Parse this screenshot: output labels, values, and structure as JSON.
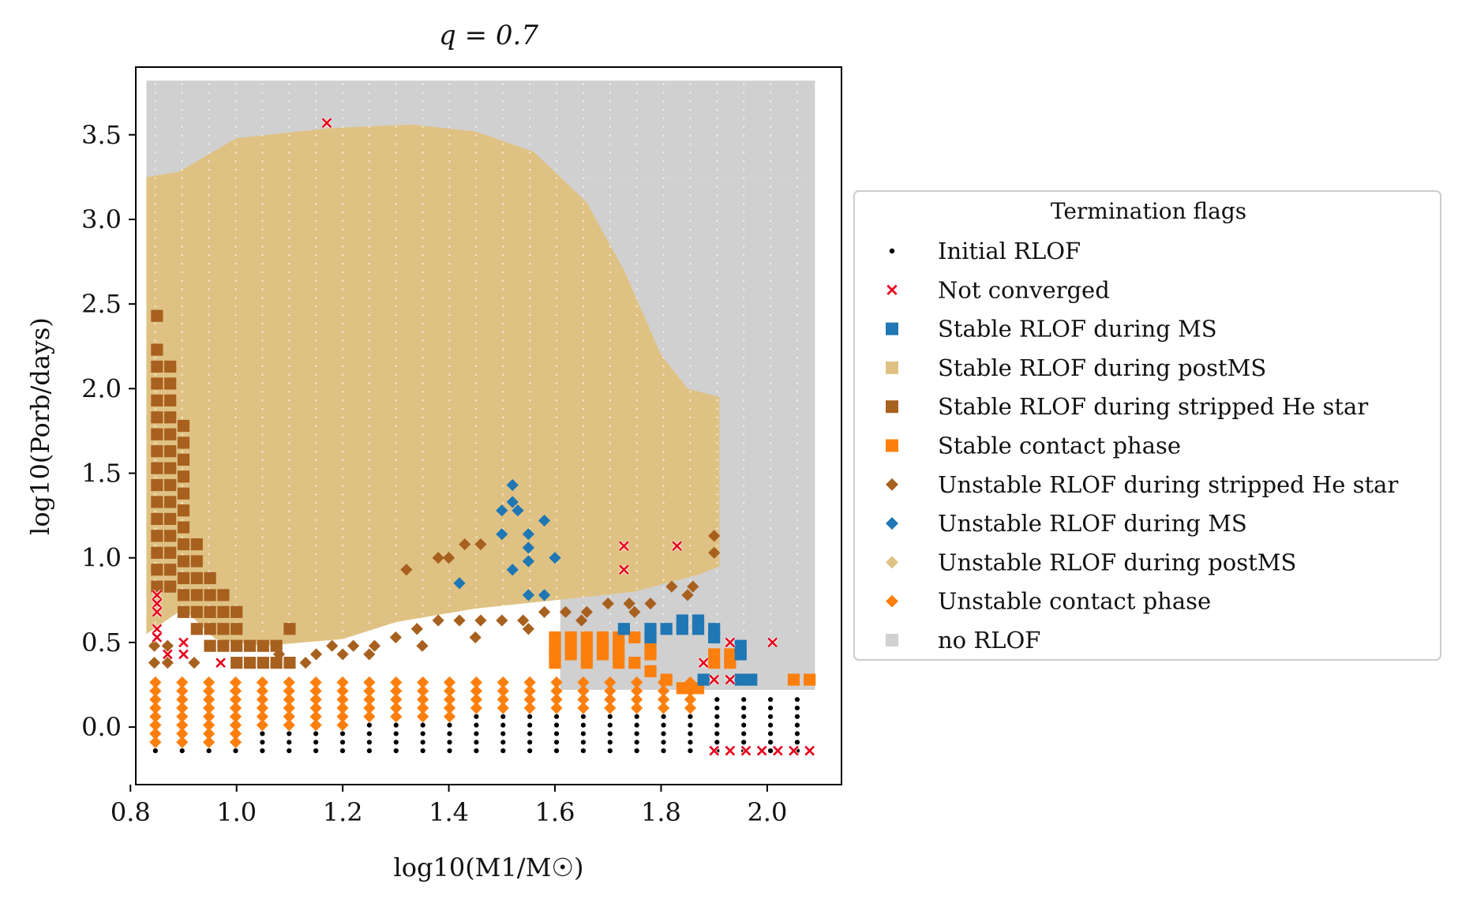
{
  "chart_data": {
    "type": "scatter",
    "title": "q = 0.7",
    "xlabel": "log10(M1/M☉)",
    "ylabel": "log10(Porb/days)",
    "xlim": [
      0.81,
      2.14
    ],
    "ylim": [
      -0.34,
      3.9
    ],
    "xticks": [
      0.8,
      1.0,
      1.2,
      1.4,
      1.6,
      1.8,
      2.0
    ],
    "yticks": [
      0.0,
      0.5,
      1.0,
      1.5,
      2.0,
      2.5,
      3.0,
      3.5
    ],
    "xtick_labels": [
      "0.8",
      "1.0",
      "1.2",
      "1.4",
      "1.6",
      "1.8",
      "2.0"
    ],
    "ytick_labels": [
      "0.0",
      "0.5",
      "1.0",
      "1.5",
      "2.0",
      "2.5",
      "3.0",
      "3.5"
    ],
    "grid": false,
    "legend": {
      "title": "Termination flags",
      "placement": "right, outside axes",
      "entries": [
        {
          "key": "initial_rlof",
          "label": "Initial RLOF",
          "marker": "dot",
          "color": "#000000"
        },
        {
          "key": "not_converged",
          "label": "Not converged",
          "marker": "x",
          "color": "#e8001c"
        },
        {
          "key": "stable_ms",
          "label": "Stable RLOF during MS",
          "marker": "square",
          "color": "#1f77b4"
        },
        {
          "key": "stable_postms",
          "label": "Stable RLOF during postMS",
          "marker": "square",
          "color": "#dfc283"
        },
        {
          "key": "stable_stripped",
          "label": "Stable RLOF during stripped He star",
          "marker": "square",
          "color": "#a8601f"
        },
        {
          "key": "stable_contact",
          "label": "Stable contact phase",
          "marker": "square",
          "color": "#fc7f0e"
        },
        {
          "key": "unstable_stripped",
          "label": "Unstable RLOF during stripped He star",
          "marker": "diamond",
          "color": "#a8601f"
        },
        {
          "key": "unstable_ms",
          "label": "Unstable RLOF during MS",
          "marker": "diamond",
          "color": "#1f77b4"
        },
        {
          "key": "unstable_postms",
          "label": "Unstable RLOF during postMS",
          "marker": "diamond",
          "color": "#dfc283"
        },
        {
          "key": "unstable_contact",
          "label": "Unstable contact phase",
          "marker": "diamond",
          "color": "#fc7f0e"
        },
        {
          "key": "no_rlof",
          "label": "no RLOF",
          "marker": "square",
          "color": "#d0d0d0"
        }
      ]
    },
    "grid_sampling": {
      "x_start": 0.847,
      "x_step": 0.0504,
      "x_count": 25,
      "y_start": -0.14,
      "y_step": 0.0505,
      "y_count": 80
    },
    "series": [
      {
        "key": "no_rlof",
        "rects": [
          [
            0.83,
            3.25,
            2.09,
            3.82
          ],
          [
            1.61,
            0.22,
            2.09,
            3.25
          ]
        ]
      },
      {
        "key": "stable_postms",
        "polygon": [
          [
            0.83,
            0.55
          ],
          [
            0.83,
            3.25
          ],
          [
            0.89,
            3.28
          ],
          [
            1.0,
            3.48
          ],
          [
            1.18,
            3.54
          ],
          [
            1.33,
            3.56
          ],
          [
            1.45,
            3.52
          ],
          [
            1.56,
            3.4
          ],
          [
            1.66,
            3.1
          ],
          [
            1.73,
            2.7
          ],
          [
            1.8,
            2.2
          ],
          [
            1.85,
            2.0
          ],
          [
            1.91,
            1.95
          ],
          [
            1.91,
            0.95
          ],
          [
            1.87,
            0.9
          ],
          [
            1.75,
            0.8
          ],
          [
            1.6,
            0.75
          ],
          [
            1.45,
            0.7
          ],
          [
            1.3,
            0.62
          ],
          [
            1.2,
            0.52
          ],
          [
            1.05,
            0.48
          ],
          [
            0.96,
            0.52
          ],
          [
            0.9,
            0.7
          ]
        ]
      },
      {
        "key": "initial_rlof",
        "region_x": [
          0.847,
          2.09
        ],
        "region_y": [
          -0.14,
          0.2
        ]
      },
      {
        "key": "unstable_contact",
        "region_x": [
          0.847,
          1.9
        ],
        "region_y": [
          -0.09,
          0.29
        ]
      },
      {
        "key": "stable_stripped",
        "points": [
          [
            0.85,
            2.43
          ],
          [
            0.85,
            2.23
          ],
          [
            0.85,
            2.13
          ],
          [
            0.85,
            2.03
          ],
          [
            0.85,
            1.93
          ],
          [
            0.85,
            1.83
          ],
          [
            0.85,
            1.73
          ],
          [
            0.85,
            1.63
          ],
          [
            0.85,
            1.53
          ],
          [
            0.85,
            1.43
          ],
          [
            0.85,
            1.33
          ],
          [
            0.85,
            1.23
          ],
          [
            0.85,
            1.13
          ],
          [
            0.85,
            1.03
          ],
          [
            0.85,
            0.93
          ],
          [
            0.85,
            0.83
          ],
          [
            0.875,
            2.13
          ],
          [
            0.875,
            2.03
          ],
          [
            0.875,
            1.93
          ],
          [
            0.875,
            1.83
          ],
          [
            0.875,
            1.73
          ],
          [
            0.875,
            1.63
          ],
          [
            0.875,
            1.53
          ],
          [
            0.875,
            1.43
          ],
          [
            0.875,
            1.33
          ],
          [
            0.875,
            1.23
          ],
          [
            0.875,
            1.13
          ],
          [
            0.875,
            1.03
          ],
          [
            0.875,
            0.93
          ],
          [
            0.875,
            0.83
          ],
          [
            0.9,
            1.78
          ],
          [
            0.9,
            1.68
          ],
          [
            0.9,
            1.58
          ],
          [
            0.9,
            1.48
          ],
          [
            0.9,
            1.38
          ],
          [
            0.9,
            1.28
          ],
          [
            0.9,
            1.18
          ],
          [
            0.9,
            1.08
          ],
          [
            0.9,
            0.98
          ],
          [
            0.9,
            0.88
          ],
          [
            0.9,
            0.78
          ],
          [
            0.9,
            0.68
          ],
          [
            0.925,
            1.08
          ],
          [
            0.925,
            0.98
          ],
          [
            0.925,
            0.88
          ],
          [
            0.925,
            0.78
          ],
          [
            0.925,
            0.68
          ],
          [
            0.925,
            0.58
          ],
          [
            0.95,
            0.88
          ],
          [
            0.95,
            0.78
          ],
          [
            0.95,
            0.68
          ],
          [
            0.95,
            0.58
          ],
          [
            0.95,
            0.48
          ],
          [
            0.975,
            0.78
          ],
          [
            0.975,
            0.68
          ],
          [
            0.975,
            0.58
          ],
          [
            0.975,
            0.48
          ],
          [
            1.0,
            0.68
          ],
          [
            1.0,
            0.58
          ],
          [
            1.0,
            0.48
          ],
          [
            1.0,
            0.38
          ],
          [
            1.025,
            0.48
          ],
          [
            1.025,
            0.38
          ],
          [
            1.05,
            0.48
          ],
          [
            1.05,
            0.38
          ],
          [
            1.075,
            0.48
          ],
          [
            1.075,
            0.38
          ],
          [
            1.1,
            0.58
          ],
          [
            1.1,
            0.38
          ]
        ]
      },
      {
        "key": "unstable_stripped",
        "points": [
          [
            0.845,
            0.48
          ],
          [
            0.845,
            0.38
          ],
          [
            0.87,
            0.48
          ],
          [
            0.87,
            0.38
          ],
          [
            0.92,
            0.38
          ],
          [
            1.08,
            0.43
          ],
          [
            1.13,
            0.38
          ],
          [
            1.15,
            0.43
          ],
          [
            1.18,
            0.48
          ],
          [
            1.22,
            0.48
          ],
          [
            1.26,
            0.48
          ],
          [
            1.3,
            0.53
          ],
          [
            1.34,
            0.58
          ],
          [
            1.38,
            0.63
          ],
          [
            1.42,
            0.63
          ],
          [
            1.46,
            0.63
          ],
          [
            1.5,
            0.63
          ],
          [
            1.54,
            0.63
          ],
          [
            1.58,
            0.68
          ],
          [
            1.62,
            0.68
          ],
          [
            1.66,
            0.68
          ],
          [
            1.7,
            0.73
          ],
          [
            1.74,
            0.73
          ],
          [
            1.78,
            0.73
          ],
          [
            1.82,
            0.83
          ],
          [
            1.86,
            0.83
          ],
          [
            1.9,
            1.13
          ],
          [
            1.9,
            1.03
          ],
          [
            1.32,
            0.93
          ],
          [
            1.38,
            1.0
          ],
          [
            1.4,
            1.0
          ],
          [
            1.43,
            1.08
          ],
          [
            1.46,
            1.08
          ],
          [
            1.2,
            0.43
          ],
          [
            1.25,
            0.43
          ],
          [
            1.35,
            0.48
          ],
          [
            1.45,
            0.53
          ],
          [
            1.55,
            0.58
          ],
          [
            1.65,
            0.63
          ],
          [
            1.75,
            0.68
          ],
          [
            1.85,
            0.78
          ]
        ]
      },
      {
        "key": "stable_contact",
        "points": [
          [
            1.6,
            0.53
          ],
          [
            1.63,
            0.53
          ],
          [
            1.66,
            0.53
          ],
          [
            1.69,
            0.53
          ],
          [
            1.72,
            0.53
          ],
          [
            1.6,
            0.48
          ],
          [
            1.63,
            0.48
          ],
          [
            1.66,
            0.48
          ],
          [
            1.69,
            0.48
          ],
          [
            1.72,
            0.48
          ],
          [
            1.6,
            0.43
          ],
          [
            1.63,
            0.43
          ],
          [
            1.66,
            0.43
          ],
          [
            1.69,
            0.43
          ],
          [
            1.72,
            0.43
          ],
          [
            1.6,
            0.38
          ],
          [
            1.66,
            0.38
          ],
          [
            1.72,
            0.38
          ],
          [
            1.75,
            0.53
          ],
          [
            1.78,
            0.48
          ],
          [
            1.78,
            0.43
          ],
          [
            1.75,
            0.38
          ],
          [
            1.78,
            0.33
          ],
          [
            1.81,
            0.28
          ],
          [
            1.84,
            0.23
          ],
          [
            1.87,
            0.23
          ],
          [
            1.9,
            0.43
          ],
          [
            1.93,
            0.43
          ],
          [
            1.9,
            0.38
          ],
          [
            1.93,
            0.38
          ],
          [
            2.05,
            0.28
          ],
          [
            2.08,
            0.28
          ]
        ]
      },
      {
        "key": "stable_ms",
        "points": [
          [
            1.73,
            0.58
          ],
          [
            1.78,
            0.58
          ],
          [
            1.78,
            0.53
          ],
          [
            1.81,
            0.58
          ],
          [
            1.84,
            0.58
          ],
          [
            1.84,
            0.63
          ],
          [
            1.87,
            0.63
          ],
          [
            1.87,
            0.58
          ],
          [
            1.9,
            0.58
          ],
          [
            1.9,
            0.53
          ],
          [
            1.95,
            0.48
          ],
          [
            1.95,
            0.43
          ],
          [
            1.97,
            0.28
          ],
          [
            1.95,
            0.28
          ],
          [
            1.88,
            0.28
          ]
        ]
      },
      {
        "key": "unstable_ms",
        "points": [
          [
            1.52,
            1.43
          ],
          [
            1.52,
            1.33
          ],
          [
            1.5,
            1.28
          ],
          [
            1.53,
            1.28
          ],
          [
            1.58,
            1.22
          ],
          [
            1.5,
            1.14
          ],
          [
            1.55,
            1.14
          ],
          [
            1.55,
            1.06
          ],
          [
            1.55,
            0.98
          ],
          [
            1.58,
            0.78
          ],
          [
            1.55,
            0.78
          ],
          [
            1.52,
            0.93
          ],
          [
            1.6,
            1.0
          ],
          [
            1.42,
            0.85
          ]
        ]
      },
      {
        "key": "unstable_postms",
        "points": []
      },
      {
        "key": "not_converged",
        "points": [
          [
            1.17,
            3.57
          ],
          [
            0.85,
            0.78
          ],
          [
            0.85,
            0.73
          ],
          [
            0.85,
            0.68
          ],
          [
            0.85,
            0.58
          ],
          [
            0.85,
            0.53
          ],
          [
            0.87,
            0.43
          ],
          [
            0.9,
            0.43
          ],
          [
            0.9,
            0.5
          ],
          [
            0.97,
            0.38
          ],
          [
            1.73,
            1.07
          ],
          [
            1.73,
            0.93
          ],
          [
            1.83,
            1.07
          ],
          [
            1.93,
            0.5
          ],
          [
            2.01,
            0.5
          ],
          [
            1.88,
            0.38
          ],
          [
            1.9,
            0.28
          ],
          [
            1.93,
            0.28
          ],
          [
            1.9,
            -0.14
          ],
          [
            1.93,
            -0.14
          ],
          [
            1.96,
            -0.14
          ],
          [
            1.99,
            -0.14
          ],
          [
            2.02,
            -0.14
          ],
          [
            2.05,
            -0.14
          ],
          [
            2.08,
            -0.14
          ]
        ]
      }
    ]
  }
}
